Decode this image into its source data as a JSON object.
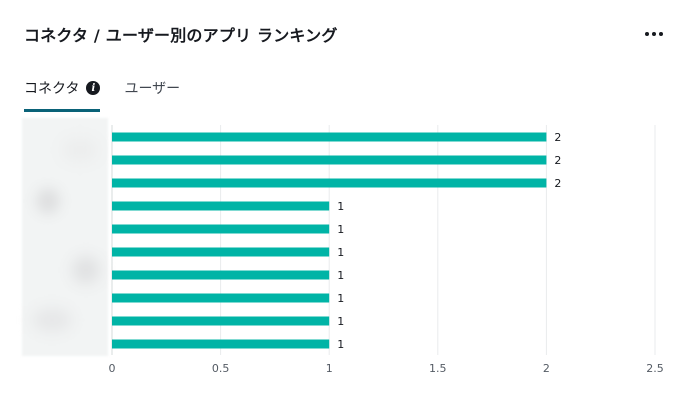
{
  "header": {
    "title": "コネクタ / ユーザー別のアプリ ランキング",
    "more_icon": "more-horizontal-icon"
  },
  "tabs": [
    {
      "label": "コネクタ",
      "active": true,
      "icon": "info-icon",
      "icon_glyph": "i"
    },
    {
      "label": "ユーザー",
      "active": false
    }
  ],
  "chart_data": {
    "type": "bar",
    "orientation": "horizontal",
    "categories_hidden": true,
    "values": [
      2,
      2,
      2,
      1,
      1,
      1,
      1,
      1,
      1,
      1
    ],
    "data_labels": [
      "2",
      "2",
      "2",
      "1",
      "1",
      "1",
      "1",
      "1",
      "1",
      "1"
    ],
    "xlim": [
      0,
      2.5
    ],
    "xticks": [
      0,
      0.5,
      1,
      1.5,
      2,
      2.5
    ],
    "xtick_labels": [
      "0",
      "0.5",
      "1",
      "1.5",
      "2",
      "2.5"
    ],
    "grid": true,
    "bar_color": "#00b4a6",
    "title": "",
    "xlabel": "",
    "ylabel": ""
  },
  "colors": {
    "accent": "#0a6278",
    "bar": "#00b4a6",
    "grid": "#e9ebed"
  }
}
